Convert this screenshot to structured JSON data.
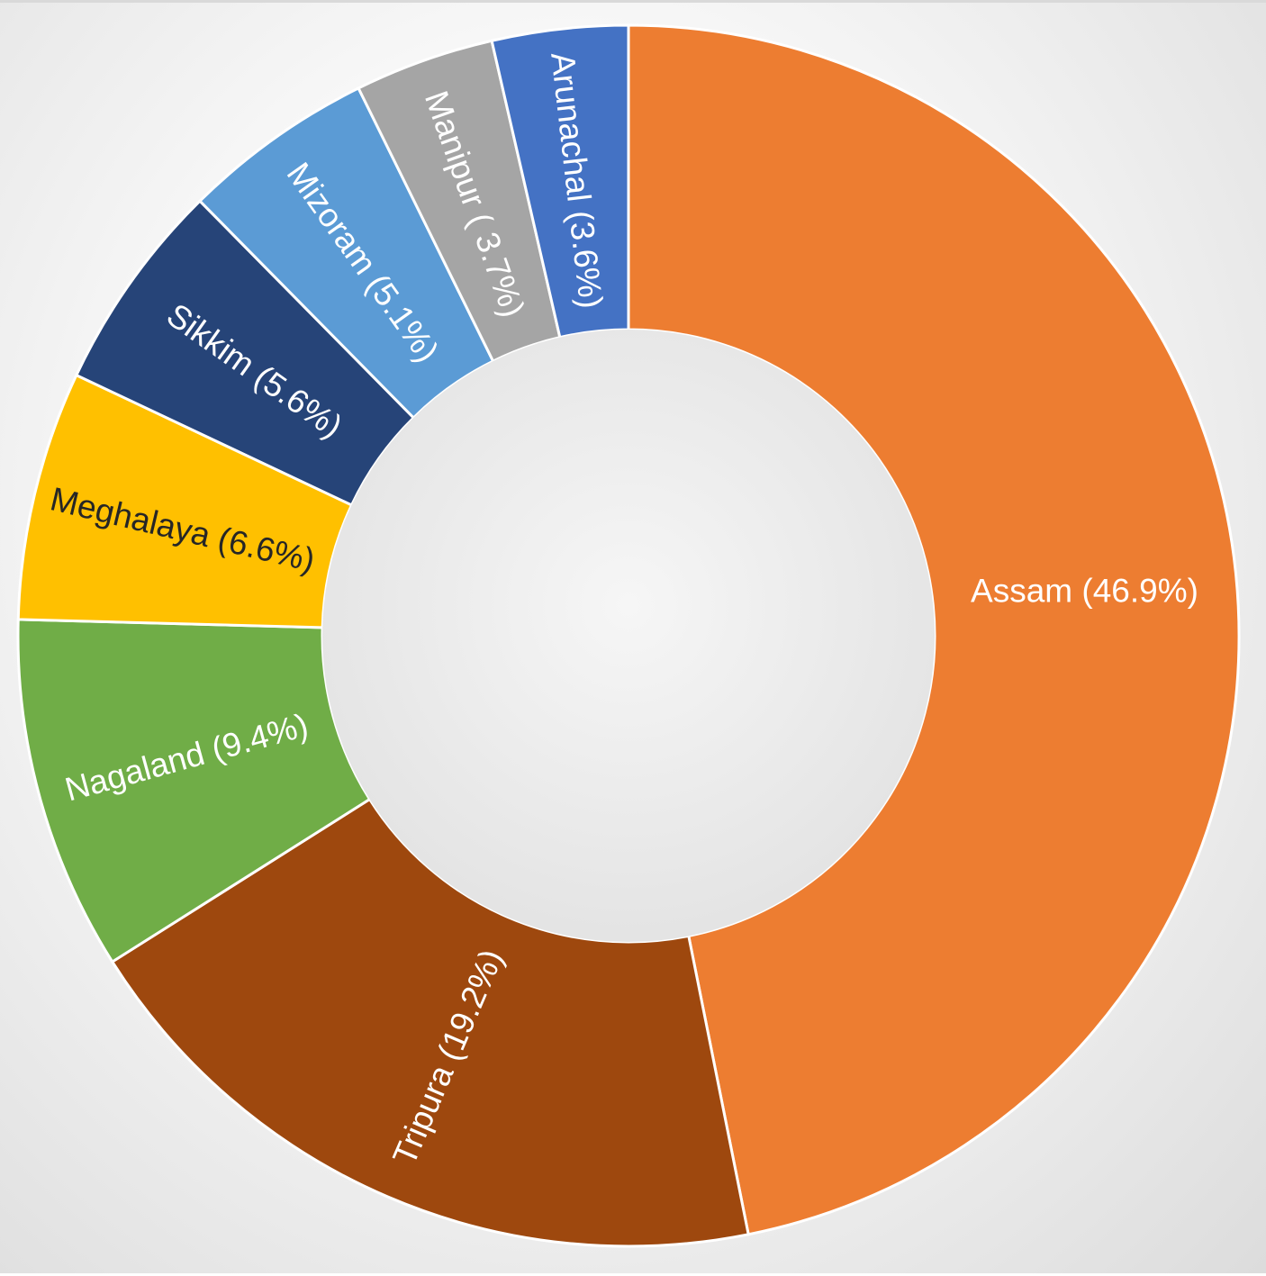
{
  "chart_data": {
    "type": "pie",
    "variant": "donut",
    "slices": [
      {
        "label": "Assam (46.9%)",
        "category": "Assam",
        "value": 46.9,
        "color": "#ED7D31",
        "text_color": "#ffffff"
      },
      {
        "label": "Tripura (19.2%)",
        "category": "Tripura",
        "value": 19.2,
        "color": "#9E480E",
        "text_color": "#ffffff"
      },
      {
        "label": "Nagaland (9.4%)",
        "category": "Nagaland",
        "value": 9.4,
        "color": "#70AD47",
        "text_color": "#ffffff"
      },
      {
        "label": "Meghalaya (6.6%)",
        "category": "Meghalaya",
        "value": 6.6,
        "color": "#FFC000",
        "text_color": "#262626"
      },
      {
        "label": "Sikkim (5.6%)",
        "category": "Sikkim",
        "value": 5.6,
        "color": "#264478",
        "text_color": "#ffffff"
      },
      {
        "label": "Mizoram (5.1%)",
        "category": "Mizoram",
        "value": 5.1,
        "color": "#5B9BD5",
        "text_color": "#ffffff"
      },
      {
        "label": "Manipur ( 3.7%)",
        "category": "Manipur",
        "value": 3.7,
        "color": "#A5A5A5",
        "text_color": "#ffffff"
      },
      {
        "label": "Arunachal (3.6%)",
        "category": "Arunachal",
        "value": 3.6,
        "color": "#4472C4",
        "text_color": "#ffffff"
      }
    ],
    "start_angle_deg": 0,
    "direction": "clockwise",
    "legend": "none",
    "data_labels": "inside-rotated"
  }
}
